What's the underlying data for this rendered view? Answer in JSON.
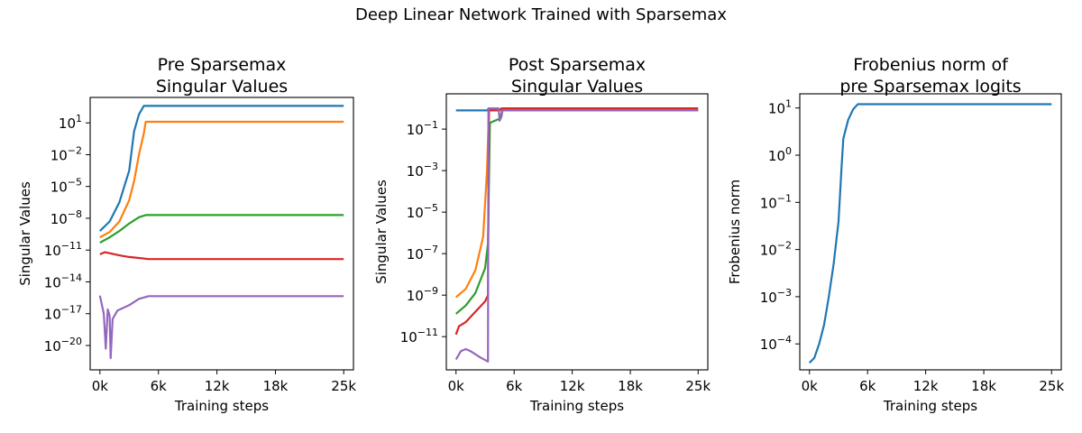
{
  "figure": {
    "title": "Deep Linear Network Trained with Sparsemax"
  },
  "chart_data": [
    {
      "type": "line",
      "title_lines": [
        "Pre Sparsemax",
        "Singular Values"
      ],
      "xlabel": "Training steps",
      "ylabel": "Singular Values",
      "yscale": "log",
      "xlim": [
        -1000,
        26000
      ],
      "ylim_log10": [
        -22.3,
        3.4
      ],
      "xticks": [
        0,
        6000,
        12000,
        18000,
        25000
      ],
      "xtick_labels": [
        "0k",
        "6k",
        "12k",
        "18k",
        "25k"
      ],
      "yticks_exp": [
        1,
        -2,
        -5,
        -8,
        -11,
        -14,
        -17,
        -20
      ],
      "grid": false,
      "series": [
        {
          "color": "#1f77b4",
          "points": [
            [
              0,
              -9.2
            ],
            [
              1000,
              -8.3
            ],
            [
              2000,
              -6.5
            ],
            [
              3000,
              -3.5
            ],
            [
              3500,
              0.2
            ],
            [
              4000,
              1.8
            ],
            [
              4500,
              2.6
            ],
            [
              5000,
              2.6
            ],
            [
              25000,
              2.6
            ]
          ]
        },
        {
          "color": "#ff7f0e",
          "points": [
            [
              0,
              -9.8
            ],
            [
              1000,
              -9.3
            ],
            [
              2000,
              -8.3
            ],
            [
              3000,
              -6.3
            ],
            [
              3500,
              -4.5
            ],
            [
              4000,
              -2.0
            ],
            [
              4500,
              0.0
            ],
            [
              4700,
              1.1
            ],
            [
              25000,
              1.1
            ]
          ]
        },
        {
          "color": "#2ca02c",
          "points": [
            [
              0,
              -10.3
            ],
            [
              1000,
              -9.8
            ],
            [
              2000,
              -9.2
            ],
            [
              3000,
              -8.5
            ],
            [
              4000,
              -7.9
            ],
            [
              4700,
              -7.7
            ],
            [
              25000,
              -7.7
            ]
          ]
        },
        {
          "color": "#d62728",
          "points": [
            [
              0,
              -11.4
            ],
            [
              500,
              -11.2
            ],
            [
              1000,
              -11.3
            ],
            [
              2000,
              -11.5
            ],
            [
              3000,
              -11.65
            ],
            [
              4000,
              -11.75
            ],
            [
              5000,
              -11.85
            ],
            [
              25000,
              -11.85
            ]
          ]
        },
        {
          "color": "#9467bd",
          "points": [
            [
              0,
              -15.3
            ],
            [
              400,
              -17.0
            ],
            [
              600,
              -20.3
            ],
            [
              800,
              -16.6
            ],
            [
              1000,
              -17.2
            ],
            [
              1100,
              -21.2
            ],
            [
              1300,
              -17.5
            ],
            [
              1800,
              -16.7
            ],
            [
              3000,
              -16.2
            ],
            [
              4000,
              -15.6
            ],
            [
              5000,
              -15.35
            ],
            [
              25000,
              -15.35
            ]
          ]
        }
      ]
    },
    {
      "type": "line",
      "title_lines": [
        "Post Sparsemax",
        "Singular Values"
      ],
      "xlabel": "Training steps",
      "ylabel": "Singular Values",
      "yscale": "log",
      "xlim": [
        -1000,
        26000
      ],
      "ylim_log10": [
        -12.6,
        0.7
      ],
      "xticks": [
        0,
        6000,
        12000,
        18000,
        25000
      ],
      "xtick_labels": [
        "0k",
        "6k",
        "12k",
        "18k",
        "25k"
      ],
      "yticks_exp": [
        -1,
        -3,
        -5,
        -7,
        -9,
        -11
      ],
      "grid": false,
      "series": [
        {
          "color": "#1f77b4",
          "points": [
            [
              0,
              -0.1
            ],
            [
              3200,
              -0.1
            ],
            [
              3400,
              0.0
            ],
            [
              3600,
              0.0
            ],
            [
              4000,
              0.0
            ],
            [
              4300,
              0.0
            ],
            [
              4800,
              -0.1
            ],
            [
              25000,
              -0.1
            ]
          ]
        },
        {
          "color": "#ff7f0e",
          "points": [
            [
              0,
              -9.1
            ],
            [
              1000,
              -8.7
            ],
            [
              2000,
              -7.8
            ],
            [
              2800,
              -6.2
            ],
            [
              3200,
              -3.0
            ],
            [
              3400,
              -0.1
            ],
            [
              3500,
              0.0
            ],
            [
              4200,
              0.0
            ],
            [
              4400,
              -0.1
            ],
            [
              25000,
              -0.1
            ]
          ]
        },
        {
          "color": "#2ca02c",
          "points": [
            [
              0,
              -9.9
            ],
            [
              1000,
              -9.5
            ],
            [
              2000,
              -8.9
            ],
            [
              3000,
              -7.7
            ],
            [
              3300,
              -6.5
            ],
            [
              3500,
              -0.7
            ],
            [
              4000,
              -0.6
            ],
            [
              4500,
              -0.5
            ],
            [
              4800,
              -0.1
            ],
            [
              25000,
              -0.1
            ]
          ]
        },
        {
          "color": "#d62728",
          "points": [
            [
              0,
              -10.9
            ],
            [
              300,
              -10.5
            ],
            [
              1000,
              -10.3
            ],
            [
              2000,
              -9.8
            ],
            [
              3000,
              -9.3
            ],
            [
              3300,
              -9.0
            ],
            [
              3400,
              -0.1
            ],
            [
              4500,
              -0.1
            ],
            [
              4700,
              0.0
            ],
            [
              25000,
              0.0
            ]
          ]
        },
        {
          "color": "#9467bd",
          "points": [
            [
              0,
              -12.1
            ],
            [
              500,
              -11.7
            ],
            [
              1000,
              -11.6
            ],
            [
              1500,
              -11.7
            ],
            [
              2500,
              -12.0
            ],
            [
              3300,
              -12.2
            ],
            [
              3350,
              0.0
            ],
            [
              4400,
              0.0
            ],
            [
              4500,
              -0.6
            ],
            [
              4700,
              -0.4
            ],
            [
              4800,
              -0.1
            ],
            [
              25000,
              -0.1
            ]
          ]
        }
      ]
    },
    {
      "type": "line",
      "title_lines": [
        "Frobenius norm of",
        "pre Sparsemax logits"
      ],
      "xlabel": "Training steps",
      "ylabel": "Frobenius norm",
      "yscale": "log",
      "xlim": [
        -1000,
        26000
      ],
      "ylim_log10": [
        -4.55,
        1.3
      ],
      "xticks": [
        0,
        6000,
        12000,
        18000,
        25000
      ],
      "xtick_labels": [
        "0k",
        "6k",
        "12k",
        "18k",
        "25k"
      ],
      "yticks_exp": [
        1,
        0,
        -1,
        -2,
        -3,
        -4
      ],
      "grid": false,
      "series": [
        {
          "color": "#1f77b4",
          "points": [
            [
              0,
              -4.4
            ],
            [
              500,
              -4.3
            ],
            [
              1000,
              -4.0
            ],
            [
              1500,
              -3.6
            ],
            [
              2000,
              -3.0
            ],
            [
              2500,
              -2.3
            ],
            [
              3000,
              -1.4
            ],
            [
              3300,
              -0.3
            ],
            [
              3500,
              0.35
            ],
            [
              4000,
              0.75
            ],
            [
              4500,
              0.97
            ],
            [
              5000,
              1.08
            ],
            [
              25000,
              1.08
            ]
          ]
        }
      ]
    }
  ]
}
